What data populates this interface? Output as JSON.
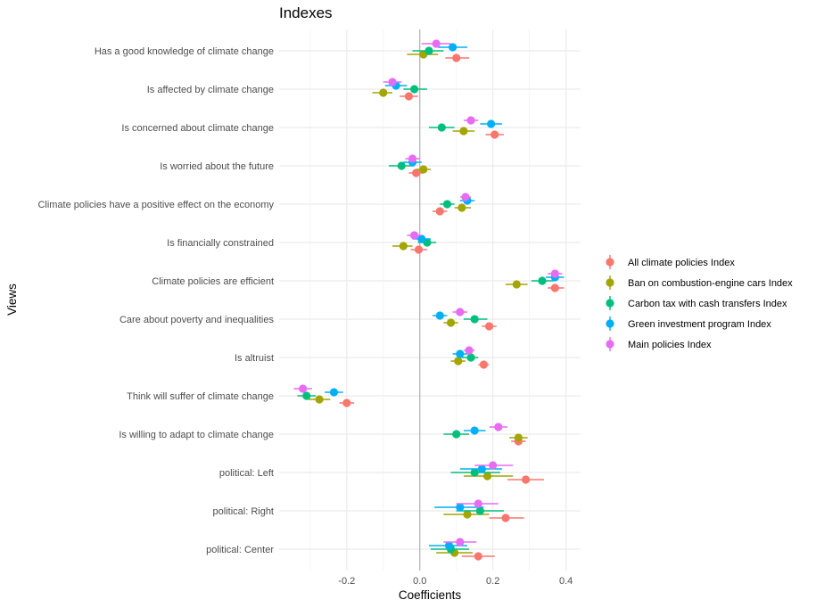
{
  "chart_data": {
    "type": "scatter",
    "title": "Indexes",
    "xlabel": "Coefficients",
    "ylabel": "Views",
    "xlim": [
      -0.385,
      0.44
    ],
    "xticks": [
      -0.2,
      0.0,
      0.2,
      0.4
    ],
    "xtick_labels": [
      "-0.2",
      "0.0",
      "0.2",
      "0.4"
    ],
    "grid": true,
    "legend_position": "right",
    "categories": [
      "Has a good knowledge of climate change",
      "Is affected by climate change",
      "Is concerned about climate change",
      "Is worried about the future",
      "Climate policies have a positive effect on the economy",
      "Is financially constrained",
      "Climate policies are efficient",
      "Care about poverty and inequalities",
      "Is altruist",
      "Think will suffer of climate change",
      "Is willing to adapt to climate change",
      "political: Left",
      "political: Right",
      "political: Center"
    ],
    "series": [
      {
        "name": "All climate policies Index",
        "color": "#F8766D",
        "values": [
          0.1,
          -0.03,
          0.205,
          -0.01,
          0.055,
          -0.003,
          0.37,
          0.19,
          0.175,
          -0.2,
          0.27,
          0.29,
          0.235,
          0.16
        ],
        "lower": [
          0.07,
          -0.055,
          0.18,
          -0.03,
          0.035,
          -0.025,
          0.35,
          0.17,
          0.16,
          -0.22,
          0.25,
          0.24,
          0.19,
          0.115
        ],
        "upper": [
          0.135,
          -0.005,
          0.23,
          0.01,
          0.075,
          0.02,
          0.395,
          0.21,
          0.19,
          -0.18,
          0.29,
          0.34,
          0.285,
          0.205
        ]
      },
      {
        "name": "Ban on combustion-engine cars Index",
        "color": "#A3A500",
        "values": [
          0.01,
          -0.1,
          0.12,
          0.01,
          0.115,
          -0.045,
          0.265,
          0.085,
          0.105,
          -0.275,
          0.27,
          0.185,
          0.13,
          0.095
        ],
        "lower": [
          -0.035,
          -0.13,
          0.09,
          -0.01,
          0.095,
          -0.075,
          0.235,
          0.065,
          0.085,
          -0.305,
          0.245,
          0.12,
          0.065,
          0.045
        ],
        "upper": [
          0.05,
          -0.075,
          0.15,
          0.03,
          0.14,
          -0.02,
          0.295,
          0.105,
          0.125,
          -0.245,
          0.295,
          0.255,
          0.19,
          0.145
        ]
      },
      {
        "name": "Carbon tax with cash transfers Index",
        "color": "#00BF7D",
        "values": [
          0.025,
          -0.015,
          0.06,
          -0.05,
          0.075,
          0.02,
          0.335,
          0.15,
          0.14,
          -0.31,
          0.1,
          0.15,
          0.165,
          0.085
        ],
        "lower": [
          -0.02,
          -0.045,
          0.025,
          -0.085,
          0.055,
          -0.005,
          0.305,
          0.12,
          0.115,
          -0.335,
          0.065,
          0.085,
          0.1,
          0.03
        ],
        "upper": [
          0.065,
          0.02,
          0.095,
          -0.015,
          0.095,
          0.045,
          0.365,
          0.185,
          0.16,
          -0.285,
          0.135,
          0.22,
          0.23,
          0.135
        ]
      },
      {
        "name": "Green investment program Index",
        "color": "#00B0F6",
        "values": [
          0.09,
          -0.065,
          0.195,
          -0.02,
          0.13,
          0.005,
          0.37,
          0.055,
          0.11,
          -0.235,
          0.15,
          0.17,
          0.11,
          0.08
        ],
        "lower": [
          0.05,
          -0.095,
          0.165,
          -0.045,
          0.11,
          -0.02,
          0.345,
          0.035,
          0.09,
          -0.26,
          0.12,
          0.11,
          0.04,
          0.025
        ],
        "upper": [
          0.13,
          -0.035,
          0.225,
          0.005,
          0.15,
          0.03,
          0.395,
          0.075,
          0.13,
          -0.21,
          0.18,
          0.225,
          0.175,
          0.13
        ]
      },
      {
        "name": "Main policies Index",
        "color": "#E76BF3",
        "values": [
          0.045,
          -0.075,
          0.14,
          -0.02,
          0.125,
          -0.015,
          0.37,
          0.11,
          0.135,
          -0.32,
          0.215,
          0.2,
          0.16,
          0.11
        ],
        "lower": [
          0.005,
          -0.1,
          0.12,
          -0.04,
          0.11,
          -0.035,
          0.35,
          0.09,
          0.12,
          -0.345,
          0.19,
          0.15,
          0.1,
          0.065
        ],
        "upper": [
          0.085,
          -0.05,
          0.16,
          0.0,
          0.14,
          0.005,
          0.39,
          0.13,
          0.15,
          -0.295,
          0.24,
          0.255,
          0.215,
          0.155
        ]
      }
    ]
  }
}
